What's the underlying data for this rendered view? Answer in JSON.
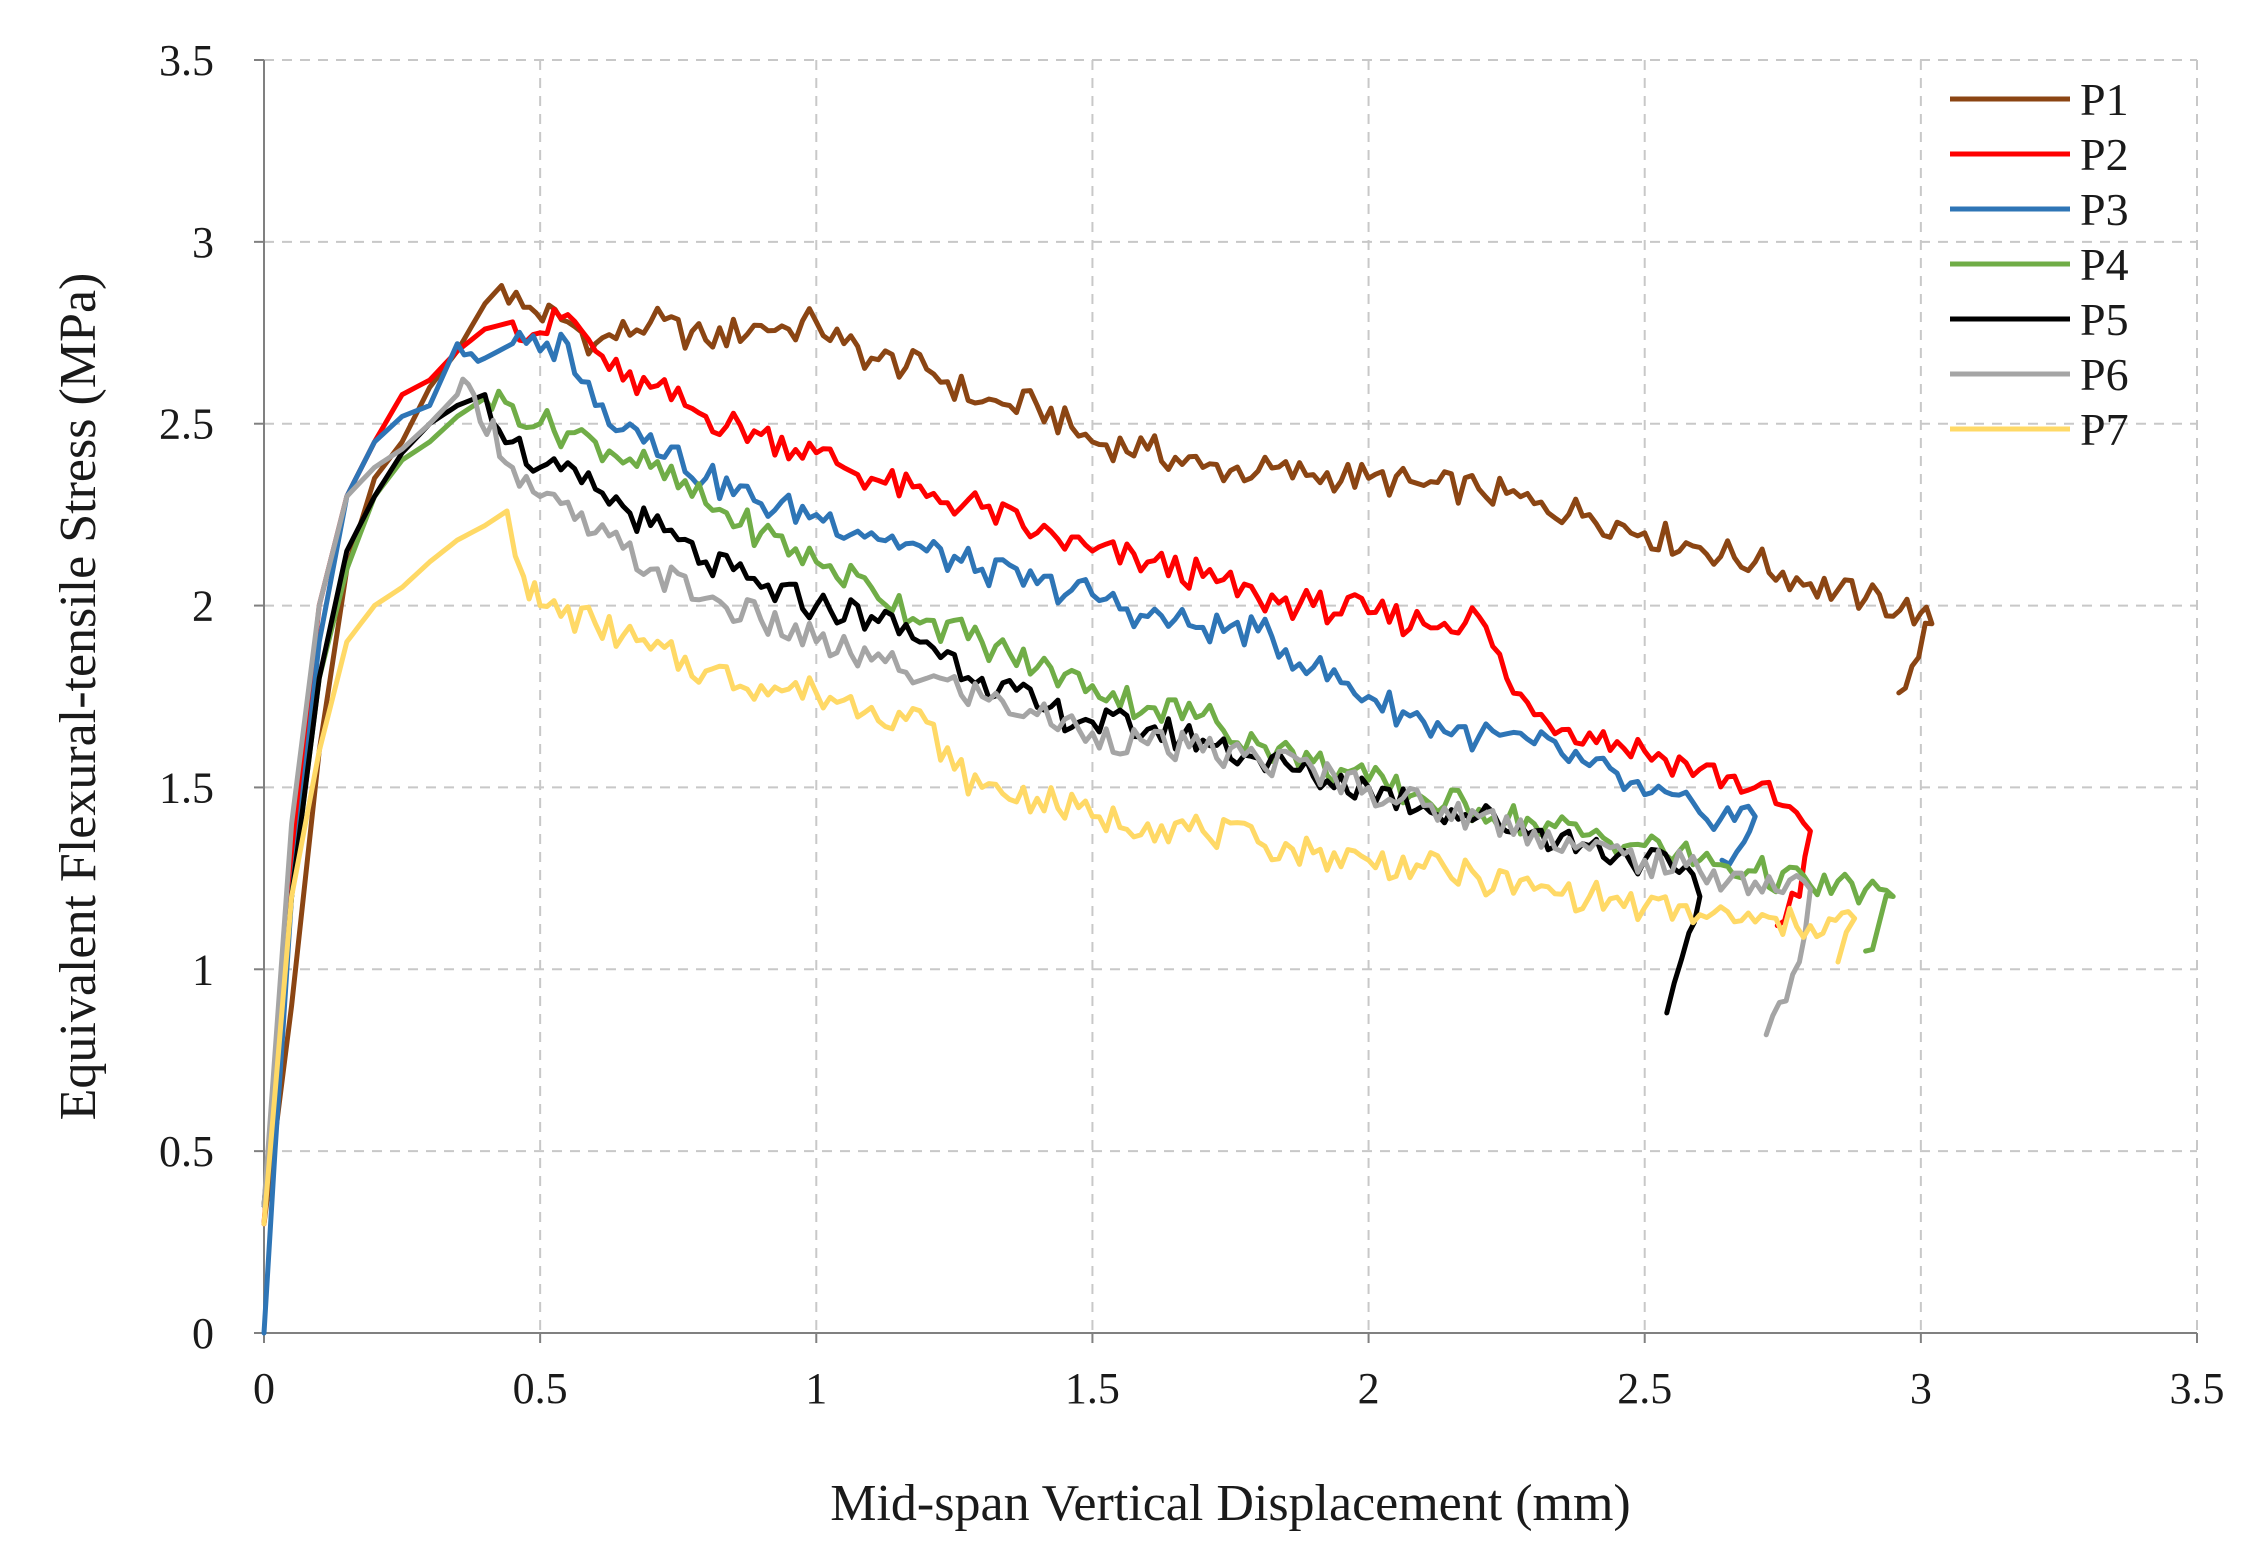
{
  "chart_data": {
    "type": "line",
    "title": "",
    "xlabel": "Mid-span Vertical Displacement (mm)",
    "ylabel": "Equivalent Flexural-tensile Stress (MPa)",
    "xlim": [
      0,
      3.5
    ],
    "ylim": [
      0,
      3.5
    ],
    "x_ticks": [
      "0",
      "0.5",
      "1",
      "1.5",
      "2",
      "2.5",
      "3",
      "3.5"
    ],
    "y_ticks": [
      "0",
      "0.5",
      "1",
      "1.5",
      "2",
      "2.5",
      "3",
      "3.5"
    ],
    "grid": true,
    "legend_position": "top-right",
    "series": [
      {
        "name": "P1",
        "color": "#8B4513",
        "points": [
          [
            0,
            0.3
          ],
          [
            0.05,
            0.9
          ],
          [
            0.1,
            1.6
          ],
          [
            0.15,
            2.1
          ],
          [
            0.2,
            2.35
          ],
          [
            0.25,
            2.45
          ],
          [
            0.3,
            2.6
          ],
          [
            0.35,
            2.7
          ],
          [
            0.4,
            2.83
          ],
          [
            0.43,
            2.88
          ],
          [
            0.47,
            2.82
          ],
          [
            0.55,
            2.78
          ],
          [
            0.6,
            2.72
          ],
          [
            0.7,
            2.78
          ],
          [
            0.8,
            2.73
          ],
          [
            0.9,
            2.77
          ],
          [
            0.95,
            2.76
          ],
          [
            1.0,
            2.78
          ],
          [
            1.05,
            2.72
          ],
          [
            1.1,
            2.68
          ],
          [
            1.2,
            2.65
          ],
          [
            1.3,
            2.56
          ],
          [
            1.35,
            2.55
          ],
          [
            1.4,
            2.55
          ],
          [
            1.5,
            2.45
          ],
          [
            1.6,
            2.43
          ],
          [
            1.7,
            2.38
          ],
          [
            1.8,
            2.37
          ],
          [
            1.9,
            2.36
          ],
          [
            2.0,
            2.35
          ],
          [
            2.1,
            2.33
          ],
          [
            2.2,
            2.32
          ],
          [
            2.3,
            2.28
          ],
          [
            2.4,
            2.25
          ],
          [
            2.5,
            2.2
          ],
          [
            2.6,
            2.16
          ],
          [
            2.7,
            2.12
          ],
          [
            2.8,
            2.06
          ],
          [
            2.9,
            2.02
          ],
          [
            3.0,
            1.98
          ],
          [
            3.02,
            1.95
          ],
          [
            2.96,
            1.76
          ]
        ]
      },
      {
        "name": "P2",
        "color": "#FF0000",
        "points": [
          [
            0,
            0.3
          ],
          [
            0.05,
            1.3
          ],
          [
            0.1,
            2.0
          ],
          [
            0.15,
            2.3
          ],
          [
            0.2,
            2.45
          ],
          [
            0.25,
            2.58
          ],
          [
            0.3,
            2.62
          ],
          [
            0.35,
            2.7
          ],
          [
            0.4,
            2.76
          ],
          [
            0.45,
            2.78
          ],
          [
            0.5,
            2.75
          ],
          [
            0.55,
            2.8
          ],
          [
            0.6,
            2.7
          ],
          [
            0.65,
            2.62
          ],
          [
            0.7,
            2.6
          ],
          [
            0.8,
            2.52
          ],
          [
            0.9,
            2.47
          ],
          [
            1.0,
            2.42
          ],
          [
            1.1,
            2.35
          ],
          [
            1.2,
            2.3
          ],
          [
            1.3,
            2.27
          ],
          [
            1.4,
            2.2
          ],
          [
            1.5,
            2.15
          ],
          [
            1.6,
            2.12
          ],
          [
            1.7,
            2.08
          ],
          [
            1.8,
            2.02
          ],
          [
            1.9,
            2.0
          ],
          [
            2.0,
            1.98
          ],
          [
            2.1,
            1.95
          ],
          [
            2.2,
            1.97
          ],
          [
            2.25,
            1.8
          ],
          [
            2.3,
            1.7
          ],
          [
            2.4,
            1.65
          ],
          [
            2.5,
            1.6
          ],
          [
            2.6,
            1.55
          ],
          [
            2.7,
            1.5
          ],
          [
            2.75,
            1.45
          ],
          [
            2.8,
            1.38
          ],
          [
            2.78,
            1.2
          ],
          [
            2.74,
            1.12
          ]
        ]
      },
      {
        "name": "P3",
        "color": "#2E75B6",
        "points": [
          [
            0,
            0
          ],
          [
            0.02,
            0.5
          ],
          [
            0.05,
            1.2
          ],
          [
            0.1,
            1.9
          ],
          [
            0.15,
            2.3
          ],
          [
            0.2,
            2.45
          ],
          [
            0.25,
            2.52
          ],
          [
            0.3,
            2.55
          ],
          [
            0.35,
            2.72
          ],
          [
            0.4,
            2.68
          ],
          [
            0.45,
            2.72
          ],
          [
            0.5,
            2.7
          ],
          [
            0.55,
            2.72
          ],
          [
            0.6,
            2.55
          ],
          [
            0.7,
            2.47
          ],
          [
            0.8,
            2.35
          ],
          [
            0.9,
            2.28
          ],
          [
            1.0,
            2.25
          ],
          [
            1.1,
            2.2
          ],
          [
            1.2,
            2.15
          ],
          [
            1.3,
            2.1
          ],
          [
            1.4,
            2.06
          ],
          [
            1.5,
            2.03
          ],
          [
            1.6,
            1.97
          ],
          [
            1.7,
            1.94
          ],
          [
            1.8,
            1.93
          ],
          [
            1.9,
            1.83
          ],
          [
            2.0,
            1.75
          ],
          [
            2.1,
            1.68
          ],
          [
            2.2,
            1.64
          ],
          [
            2.3,
            1.62
          ],
          [
            2.4,
            1.56
          ],
          [
            2.5,
            1.48
          ],
          [
            2.6,
            1.43
          ],
          [
            2.7,
            1.42
          ],
          [
            2.68,
            1.35
          ],
          [
            2.64,
            1.3
          ]
        ]
      },
      {
        "name": "P4",
        "color": "#70AD47",
        "points": [
          [
            0,
            0.35
          ],
          [
            0.05,
            1.2
          ],
          [
            0.1,
            1.8
          ],
          [
            0.15,
            2.1
          ],
          [
            0.2,
            2.3
          ],
          [
            0.25,
            2.4
          ],
          [
            0.3,
            2.45
          ],
          [
            0.35,
            2.52
          ],
          [
            0.4,
            2.57
          ],
          [
            0.45,
            2.55
          ],
          [
            0.5,
            2.5
          ],
          [
            0.6,
            2.45
          ],
          [
            0.7,
            2.38
          ],
          [
            0.8,
            2.28
          ],
          [
            0.9,
            2.2
          ],
          [
            1.0,
            2.12
          ],
          [
            1.1,
            2.05
          ],
          [
            1.2,
            1.96
          ],
          [
            1.3,
            1.9
          ],
          [
            1.4,
            1.83
          ],
          [
            1.5,
            1.78
          ],
          [
            1.6,
            1.72
          ],
          [
            1.7,
            1.7
          ],
          [
            1.8,
            1.62
          ],
          [
            1.9,
            1.57
          ],
          [
            2.0,
            1.52
          ],
          [
            2.1,
            1.47
          ],
          [
            2.2,
            1.44
          ],
          [
            2.3,
            1.4
          ],
          [
            2.4,
            1.37
          ],
          [
            2.5,
            1.34
          ],
          [
            2.6,
            1.3
          ],
          [
            2.7,
            1.27
          ],
          [
            2.8,
            1.23
          ],
          [
            2.9,
            1.22
          ],
          [
            2.95,
            1.2
          ],
          [
            2.9,
            1.05
          ]
        ]
      },
      {
        "name": "P5",
        "color": "#000000",
        "points": [
          [
            0,
            0.35
          ],
          [
            0.05,
            1.2
          ],
          [
            0.1,
            1.8
          ],
          [
            0.15,
            2.15
          ],
          [
            0.2,
            2.3
          ],
          [
            0.25,
            2.42
          ],
          [
            0.3,
            2.5
          ],
          [
            0.35,
            2.55
          ],
          [
            0.4,
            2.58
          ],
          [
            0.45,
            2.45
          ],
          [
            0.5,
            2.38
          ],
          [
            0.6,
            2.32
          ],
          [
            0.7,
            2.22
          ],
          [
            0.8,
            2.12
          ],
          [
            0.9,
            2.05
          ],
          [
            1.0,
            2.0
          ],
          [
            1.1,
            1.97
          ],
          [
            1.2,
            1.9
          ],
          [
            1.3,
            1.8
          ],
          [
            1.4,
            1.72
          ],
          [
            1.5,
            1.68
          ],
          [
            1.6,
            1.66
          ],
          [
            1.7,
            1.63
          ],
          [
            1.8,
            1.58
          ],
          [
            1.9,
            1.53
          ],
          [
            2.0,
            1.5
          ],
          [
            2.1,
            1.45
          ],
          [
            2.2,
            1.42
          ],
          [
            2.3,
            1.38
          ],
          [
            2.4,
            1.34
          ],
          [
            2.5,
            1.3
          ],
          [
            2.55,
            1.28
          ],
          [
            2.6,
            1.2
          ],
          [
            2.58,
            1.1
          ],
          [
            2.54,
            0.88
          ]
        ]
      },
      {
        "name": "P6",
        "color": "#A5A5A5",
        "points": [
          [
            0,
            0.35
          ],
          [
            0.05,
            1.4
          ],
          [
            0.1,
            2.0
          ],
          [
            0.15,
            2.3
          ],
          [
            0.2,
            2.38
          ],
          [
            0.25,
            2.43
          ],
          [
            0.3,
            2.5
          ],
          [
            0.35,
            2.58
          ],
          [
            0.38,
            2.58
          ],
          [
            0.45,
            2.38
          ],
          [
            0.5,
            2.3
          ],
          [
            0.6,
            2.2
          ],
          [
            0.7,
            2.1
          ],
          [
            0.8,
            2.02
          ],
          [
            0.9,
            1.96
          ],
          [
            1.0,
            1.9
          ],
          [
            1.1,
            1.85
          ],
          [
            1.2,
            1.8
          ],
          [
            1.3,
            1.75
          ],
          [
            1.4,
            1.7
          ],
          [
            1.5,
            1.65
          ],
          [
            1.6,
            1.62
          ],
          [
            1.7,
            1.6
          ],
          [
            1.8,
            1.58
          ],
          [
            1.9,
            1.55
          ],
          [
            2.0,
            1.5
          ],
          [
            2.1,
            1.45
          ],
          [
            2.2,
            1.42
          ],
          [
            2.3,
            1.38
          ],
          [
            2.4,
            1.33
          ],
          [
            2.5,
            1.3
          ],
          [
            2.6,
            1.27
          ],
          [
            2.7,
            1.24
          ],
          [
            2.8,
            1.22
          ],
          [
            2.78,
            1.02
          ],
          [
            2.72,
            0.82
          ]
        ]
      },
      {
        "name": "P7",
        "color": "#FFD966",
        "points": [
          [
            0,
            0.3
          ],
          [
            0.05,
            1.2
          ],
          [
            0.1,
            1.6
          ],
          [
            0.15,
            1.9
          ],
          [
            0.2,
            2.0
          ],
          [
            0.25,
            2.05
          ],
          [
            0.3,
            2.12
          ],
          [
            0.35,
            2.18
          ],
          [
            0.4,
            2.22
          ],
          [
            0.44,
            2.26
          ],
          [
            0.47,
            2.08
          ],
          [
            0.5,
            2.0
          ],
          [
            0.6,
            1.95
          ],
          [
            0.7,
            1.88
          ],
          [
            0.8,
            1.82
          ],
          [
            0.9,
            1.78
          ],
          [
            1.0,
            1.76
          ],
          [
            1.1,
            1.72
          ],
          [
            1.2,
            1.68
          ],
          [
            1.25,
            1.55
          ],
          [
            1.3,
            1.5
          ],
          [
            1.4,
            1.47
          ],
          [
            1.5,
            1.42
          ],
          [
            1.6,
            1.4
          ],
          [
            1.7,
            1.38
          ],
          [
            1.8,
            1.35
          ],
          [
            1.9,
            1.32
          ],
          [
            2.0,
            1.3
          ],
          [
            2.1,
            1.28
          ],
          [
            2.2,
            1.25
          ],
          [
            2.3,
            1.22
          ],
          [
            2.4,
            1.2
          ],
          [
            2.5,
            1.17
          ],
          [
            2.6,
            1.15
          ],
          [
            2.7,
            1.13
          ],
          [
            2.8,
            1.12
          ],
          [
            2.88,
            1.14
          ],
          [
            2.85,
            1.02
          ]
        ]
      }
    ]
  }
}
